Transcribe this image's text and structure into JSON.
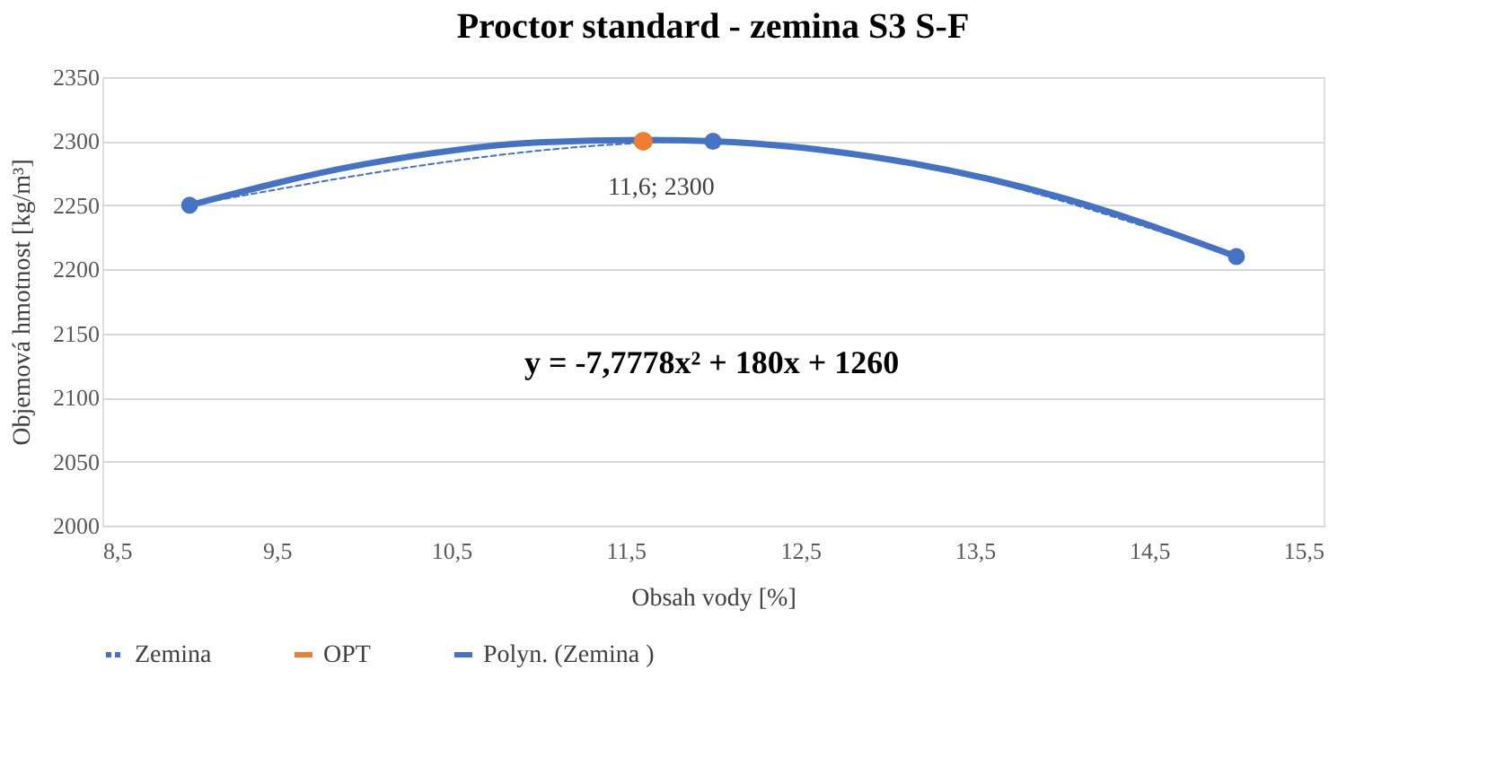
{
  "chart_data": {
    "type": "line",
    "title": "Proctor standard  - zemina S3 S-F",
    "xlabel": "Obsah vody  [%]",
    "ylabel": "Objemová hmotnost  [kg/m³]",
    "xlim": [
      8.5,
      15.5
    ],
    "xticks": [
      {
        "value": 8.5,
        "label": "8,5"
      },
      {
        "value": 9.5,
        "label": "9,5"
      },
      {
        "value": 10.5,
        "label": "10,5"
      },
      {
        "value": 11.5,
        "label": "11,5"
      },
      {
        "value": 12.5,
        "label": "12,5"
      },
      {
        "value": 13.5,
        "label": "13,5"
      },
      {
        "value": 14.5,
        "label": "14,5"
      },
      {
        "value": 15.5,
        "label": "15,5"
      }
    ],
    "ylim": [
      2000,
      2350
    ],
    "yticks": [
      2000,
      2050,
      2100,
      2150,
      2200,
      2250,
      2300,
      2350
    ],
    "grid": "y",
    "legend": "bottom",
    "series": [
      {
        "name": "Zemina",
        "color": "#4472c4",
        "marker": "circle",
        "line_style": "dashed",
        "x": [
          9,
          12,
          15
        ],
        "values": [
          2250,
          2300,
          2210
        ]
      },
      {
        "name": "OPT",
        "color": "#ed7d31",
        "type": "scatter",
        "marker": "circle",
        "x": [
          11.6
        ],
        "values": [
          2300
        ]
      },
      {
        "name": "Polyn. (Zemina )",
        "color": "#4472c4",
        "marker": "none",
        "line_style": "solid",
        "x": [
          9,
          10,
          11,
          11.6,
          12,
          13,
          14,
          15
        ],
        "values": [
          2250,
          2282,
          2299,
          2301,
          2300,
          2286,
          2256,
          2210
        ]
      }
    ],
    "annotations": [
      {
        "text": "11,6;  2300",
        "x": 11.6,
        "y": 2300
      },
      "y = -7,7778x² + 180x + 1260"
    ]
  }
}
